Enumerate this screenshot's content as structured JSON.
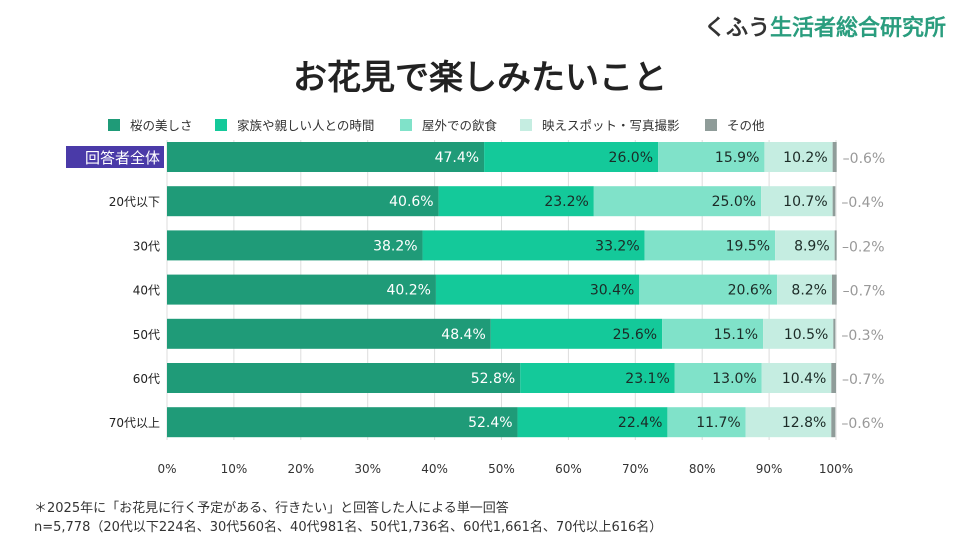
{
  "brand": {
    "prefix": "くふう",
    "name": "生活者総合研究所"
  },
  "title": "お花見で楽しみたいこと",
  "notes": [
    "＊2025年に「お花見に行く予定がある、行きたい」と回答した人による単一回答",
    "n=5,778（20代以下224名、30代560名、40代981名、50代1,736名、60代1,661名、70代以上616名）"
  ],
  "chart_data": {
    "type": "bar",
    "orientation": "horizontal",
    "stacked": true,
    "categories": [
      "回答者全体",
      "20代以下",
      "30代",
      "40代",
      "50代",
      "60代",
      "70代以上"
    ],
    "highlighted_category": "回答者全体",
    "series": [
      {
        "name": "桜の美しさ",
        "color": "#1f9b78",
        "values": [
          47.4,
          40.6,
          38.2,
          40.2,
          48.4,
          52.8,
          52.4
        ]
      },
      {
        "name": "家族や親しい人との時間",
        "color": "#14c99a",
        "values": [
          26.0,
          23.2,
          33.2,
          30.4,
          25.6,
          23.1,
          22.4
        ]
      },
      {
        "name": "屋外での飲食",
        "color": "#80e2c9",
        "values": [
          15.9,
          25.0,
          19.5,
          20.6,
          15.1,
          13.0,
          11.7
        ]
      },
      {
        "name": "映えスポット・写真撮影",
        "color": "#c5ede1",
        "values": [
          10.2,
          10.7,
          8.9,
          8.2,
          10.5,
          10.4,
          12.8
        ]
      },
      {
        "name": "その他",
        "color": "#8f9c99",
        "values": [
          0.6,
          0.4,
          0.2,
          0.7,
          0.3,
          0.7,
          0.6
        ]
      }
    ],
    "xlim": [
      0,
      100
    ],
    "xticks": [
      "0%",
      "10%",
      "20%",
      "30%",
      "40%",
      "50%",
      "60%",
      "70%",
      "80%",
      "90%",
      "100%"
    ],
    "legend": "top",
    "grid": true
  }
}
